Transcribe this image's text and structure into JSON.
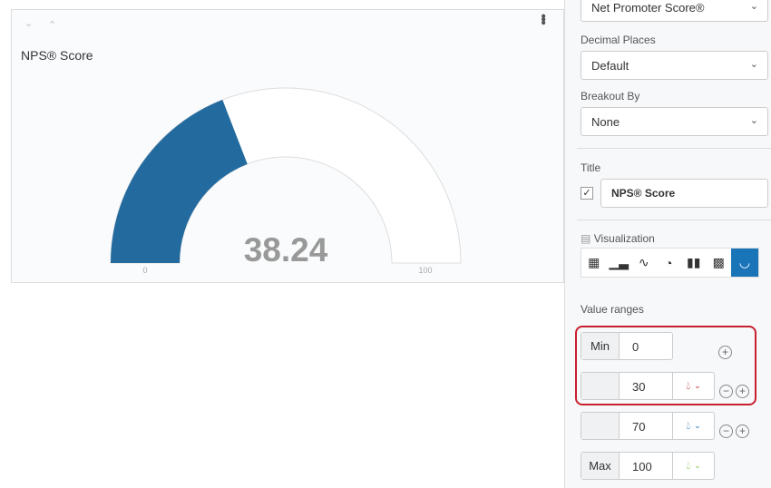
{
  "widget": {
    "title": "NPS® Score",
    "value": "38.24",
    "min_label": "0",
    "max_label": "100"
  },
  "chart_data": {
    "type": "gauge",
    "value": 38.24,
    "min": 0,
    "max": 100,
    "fill_color": "#236b9f"
  },
  "sidebar": {
    "metric_value": "Net Promoter Score®",
    "decimal_label": "Decimal Places",
    "decimal_value": "Default",
    "breakout_label": "Breakout By",
    "breakout_value": "None",
    "title_label": "Title",
    "title_checked": true,
    "title_value": "NPS® Score",
    "viz_label": "Visualization",
    "viz_types": [
      "table",
      "bar",
      "line",
      "pie",
      "breakdown-bar",
      "heatmap",
      "gauge"
    ],
    "viz_selected": "gauge",
    "ranges_label": "Value ranges",
    "ranges": [
      {
        "prefix": "Min",
        "value": "0"
      },
      {
        "prefix": "",
        "value": "30",
        "color": "#b5222a"
      },
      {
        "prefix": "",
        "value": "70",
        "color": "#1a6fb0"
      },
      {
        "prefix": "Max",
        "value": "100",
        "color": "#7cc242"
      }
    ]
  }
}
